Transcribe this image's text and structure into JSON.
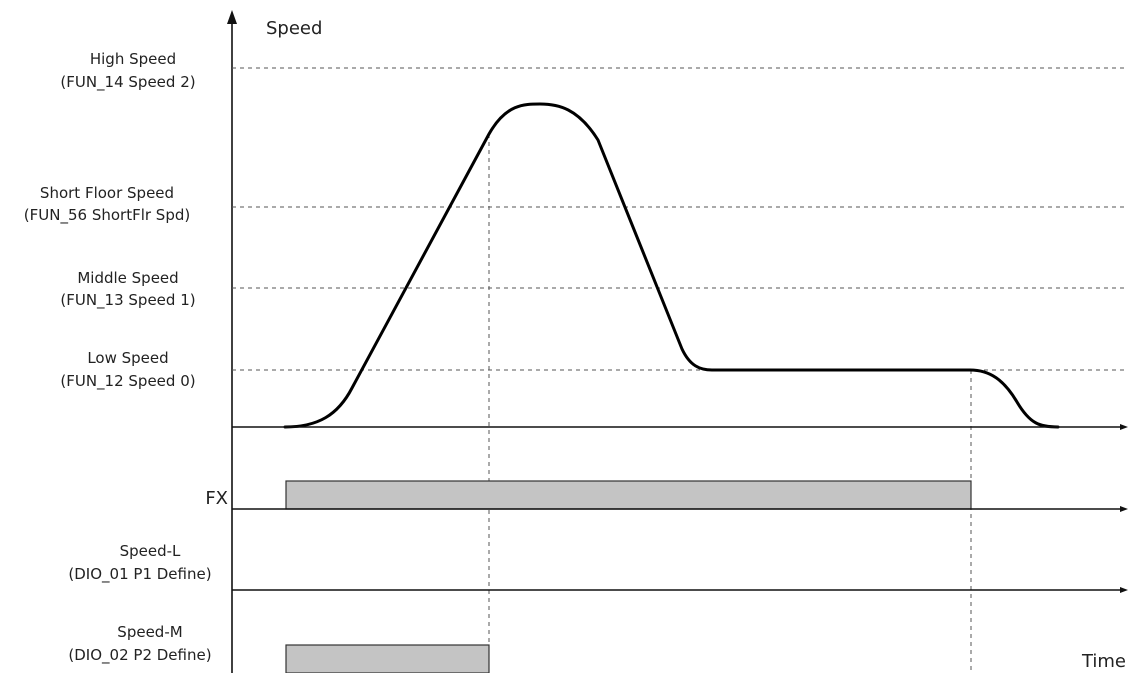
{
  "axes": {
    "y_label": "Speed",
    "x_label": "Time"
  },
  "speed_levels": [
    {
      "id": "high",
      "name": "High Speed",
      "param": "(FUN_14 Speed 2)"
    },
    {
      "id": "short_floor",
      "name": "Short Floor Speed",
      "param": "(FUN_56 ShortFlr Spd)"
    },
    {
      "id": "middle",
      "name": "Middle  Speed",
      "param": "(FUN_13 Speed 1)"
    },
    {
      "id": "low",
      "name": "Low Speed",
      "param": "(FUN_12 Speed 0)"
    }
  ],
  "signals": [
    {
      "id": "fx",
      "name": "FX",
      "param": ""
    },
    {
      "id": "speed_l",
      "name": "Speed-L",
      "param": "(DIO_01 P1 Define)"
    },
    {
      "id": "speed_m",
      "name": "Speed-M",
      "param": "(DIO_02 P2 Define)"
    }
  ],
  "colors": {
    "pulse_fill": "#c4c4c4",
    "curve": "#000000",
    "dashed": "#555555"
  }
}
